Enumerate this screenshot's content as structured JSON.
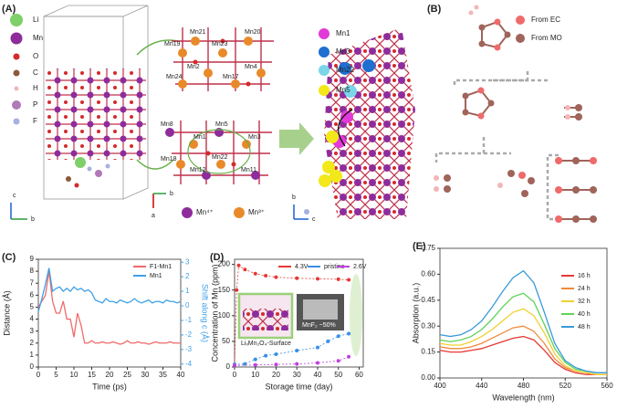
{
  "panel_labels": [
    "(A)",
    "(B)",
    "(C)",
    "(D)",
    "(E)"
  ],
  "structure": {
    "atoms": [
      "Li",
      "Mn",
      "O",
      "C",
      "H",
      "P",
      "F"
    ],
    "axes": [
      "c",
      "b",
      "a"
    ],
    "mn_labels": [
      "Mn21",
      "Mn20",
      "Mn19",
      "Mn23",
      "Mn2",
      "Mn4",
      "Mn24",
      "Mn17",
      "Mn8",
      "Mn5",
      "Mn1",
      "Mn3",
      "Mn18",
      "Mn22",
      "Mn12",
      "Mn11"
    ],
    "valence": [
      "Mn⁴⁺",
      "Mn³⁺"
    ],
    "highlight": [
      "Mn1",
      "Mn3",
      "Mn22",
      "Mn5"
    ],
    "sources": [
      "From EC",
      "From MO"
    ]
  },
  "chart_data": [
    {
      "type": "line",
      "xlabel": "Time (ps)",
      "ylabel": "Distance (Å)",
      "y2label": "Shift along c (Å)",
      "x": [
        0,
        1,
        2,
        3,
        4,
        5,
        6,
        7,
        8,
        9,
        10,
        11,
        12,
        13,
        14,
        15,
        16,
        17,
        18,
        19,
        20,
        21,
        22,
        23,
        24,
        25,
        26,
        27,
        28,
        29,
        30,
        31,
        32,
        33,
        34,
        35,
        36,
        37,
        38,
        39,
        40
      ],
      "series": [
        {
          "name": "F1-Mn1",
          "color": "#f06a6a",
          "values": [
            5.0,
            5.5,
            6.0,
            8.0,
            5.5,
            4.5,
            4.5,
            5.5,
            4.0,
            4.0,
            2.5,
            4.5,
            3.5,
            2.0,
            2.0,
            2.2,
            2.0,
            2.0,
            2.1,
            2.0,
            2.0,
            2.1,
            2.0,
            1.9,
            2.0,
            2.2,
            2.0,
            2.0,
            2.1,
            2.0,
            2.0,
            1.9,
            2.0,
            2.1,
            2.0,
            2.0,
            2.0,
            2.1,
            2.0,
            2.0,
            2.0
          ]
        },
        {
          "name": "Mn1",
          "color": "#3fa0e8",
          "axis": "y2",
          "values": [
            -0.4,
            0.5,
            1.5,
            2.6,
            1.0,
            1.2,
            1.3,
            1.0,
            1.2,
            1.0,
            1.3,
            1.1,
            1.2,
            1.0,
            1.1,
            0.9,
            0.4,
            0.3,
            0.2,
            0.5,
            0.3,
            0.3,
            0.2,
            0.4,
            0.3,
            0.2,
            0.3,
            0.5,
            0.3,
            0.2,
            0.3,
            0.4,
            0.2,
            0.3,
            0.3,
            0.2,
            0.4,
            0.3,
            0.3,
            0.2,
            0.3
          ]
        }
      ],
      "xlim": [
        0,
        40
      ],
      "xticks": [
        0,
        5,
        10,
        15,
        20,
        25,
        30,
        35,
        40
      ],
      "ylim": [
        0,
        9
      ],
      "yticks": [
        0,
        1,
        2,
        3,
        4,
        5,
        6,
        7,
        8,
        9
      ],
      "y2lim": [
        -4.2,
        3.2
      ],
      "y2ticks": [
        -4,
        -3,
        -2,
        -1,
        0,
        1,
        2,
        3
      ],
      "legend": "upper right"
    },
    {
      "type": "line",
      "markers": true,
      "dashed": true,
      "xlabel": "Storage time (day)",
      "ylabel": "Concentration of Mn (ppm)",
      "series": [
        {
          "name": "4.3V",
          "color": "#e53935",
          "x": [
            0,
            1,
            2,
            5,
            10,
            15,
            20,
            30,
            40,
            50,
            55
          ],
          "values": [
            5,
            150,
            198,
            190,
            182,
            178,
            175,
            173,
            172,
            171,
            170
          ]
        },
        {
          "name": "pristine",
          "color": "#3a8ee6",
          "x": [
            0,
            5,
            10,
            15,
            20,
            30,
            40,
            45,
            50,
            55
          ],
          "values": [
            5,
            6,
            15,
            22,
            25,
            32,
            38,
            50,
            60,
            65
          ]
        },
        {
          "name": "2.6V",
          "color": "#c040e0",
          "x": [
            0,
            10,
            20,
            30,
            40,
            50,
            55
          ],
          "values": [
            3,
            4,
            5,
            6,
            8,
            12,
            20
          ]
        }
      ],
      "annotations": [
        "LiₓMn₂O₄-Surface",
        "MnF₂ ~50%"
      ],
      "xlim": [
        0,
        62
      ],
      "xticks": [
        0,
        10,
        20,
        30,
        40,
        50,
        60
      ],
      "ylim": [
        0,
        210
      ],
      "yticks": [
        0,
        50,
        100,
        150,
        200
      ],
      "legend": "upper center"
    },
    {
      "type": "line",
      "xlabel": "Wavelength (nm)",
      "ylabel": "Absorption (a.u.)",
      "x": [
        400,
        410,
        420,
        430,
        440,
        450,
        460,
        470,
        480,
        490,
        500,
        510,
        520,
        530,
        540,
        550,
        560
      ],
      "series": [
        {
          "name": "16 h",
          "color": "#e53935",
          "values": [
            0.16,
            0.15,
            0.15,
            0.16,
            0.17,
            0.19,
            0.21,
            0.23,
            0.24,
            0.22,
            0.16,
            0.09,
            0.05,
            0.03,
            0.02,
            0.02,
            0.02
          ]
        },
        {
          "name": "24 h",
          "color": "#f08a3c",
          "values": [
            0.18,
            0.17,
            0.17,
            0.18,
            0.2,
            0.23,
            0.26,
            0.29,
            0.3,
            0.27,
            0.2,
            0.11,
            0.06,
            0.04,
            0.03,
            0.02,
            0.02
          ]
        },
        {
          "name": "32 h",
          "color": "#f0d030",
          "values": [
            0.2,
            0.19,
            0.19,
            0.21,
            0.24,
            0.28,
            0.33,
            0.38,
            0.4,
            0.36,
            0.26,
            0.14,
            0.07,
            0.04,
            0.03,
            0.02,
            0.02
          ]
        },
        {
          "name": "40 h",
          "color": "#5fd35a",
          "values": [
            0.22,
            0.21,
            0.22,
            0.24,
            0.28,
            0.34,
            0.41,
            0.47,
            0.49,
            0.44,
            0.31,
            0.17,
            0.09,
            0.05,
            0.04,
            0.03,
            0.03
          ]
        },
        {
          "name": "48 h",
          "color": "#3a9ad9",
          "values": [
            0.25,
            0.24,
            0.25,
            0.28,
            0.33,
            0.41,
            0.5,
            0.58,
            0.62,
            0.55,
            0.38,
            0.2,
            0.1,
            0.06,
            0.04,
            0.03,
            0.03
          ]
        }
      ],
      "xlim": [
        400,
        560
      ],
      "xticks": [
        400,
        440,
        480,
        520,
        560
      ],
      "ylim": [
        0,
        0.75
      ],
      "yticks": [
        {
          "value": 0,
          "label": "0.00"
        },
        0.15,
        {
          "value": 0.3,
          "label": "0.30"
        },
        0.45,
        {
          "value": 0.6,
          "label": "0.60"
        },
        0.75
      ],
      "legend": "center right"
    }
  ]
}
